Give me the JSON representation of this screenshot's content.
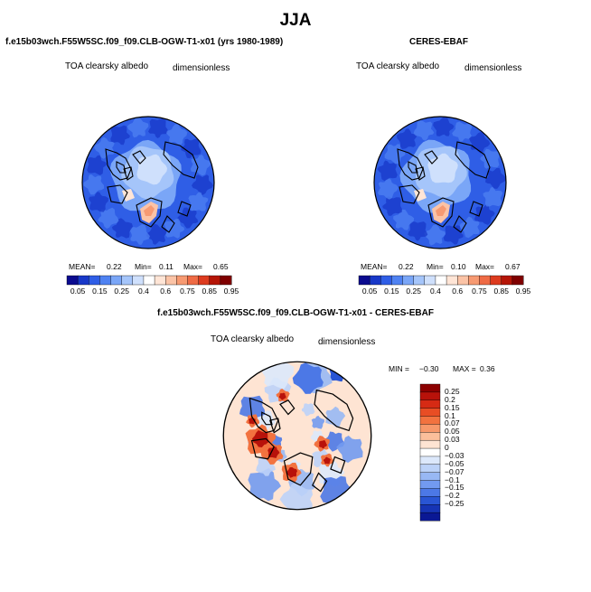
{
  "season": "JJA",
  "panels": [
    {
      "title": "f.e15b03wch.F55W5SC.f09_f09.CLB-OGW-T1-x01 (yrs 1980-1989)",
      "field_label": "TOA clearsky albedo",
      "units_label": "dimensionless",
      "stats": {
        "mean_label": "MEAN=",
        "mean": "0.22",
        "min_label": "Min=",
        "min": "0.11",
        "max_label": "Max=",
        "max": "0.65"
      }
    },
    {
      "title": "CERES-EBAF",
      "field_label": "TOA clearsky albedo",
      "units_label": "dimensionless",
      "stats": {
        "mean_label": "MEAN=",
        "mean": "0.22",
        "min_label": "Min=",
        "min": "0.10",
        "max_label": "Max=",
        "max": "0.67"
      }
    },
    {
      "title": "f.e15b03wch.F55W5SC.f09_f09.CLB-OGW-T1-x01 - CERES-EBAF",
      "field_label": "TOA clearsky albedo",
      "units_label": "dimensionless",
      "stats": {
        "min_label": "MIN =",
        "min": "−0.30",
        "max_label": "MAX =",
        "max": "0.36"
      }
    }
  ],
  "colorbar_abs": {
    "ticks": [
      "0.05",
      "0.15",
      "0.25",
      "0.4",
      "0.6",
      "0.75",
      "0.85",
      "0.95"
    ],
    "colors": [
      "#0b0b8f",
      "#1838c8",
      "#2f5ee6",
      "#4f82f2",
      "#7aa6f7",
      "#a5c5fa",
      "#cfe0fc",
      "#ffffff",
      "#ffe5d6",
      "#fbc3a6",
      "#f79a72",
      "#ef6b45",
      "#dd3b1f",
      "#b51507",
      "#7f0000"
    ]
  },
  "colorbar_diff": {
    "ticks": [
      "0.25",
      "0.2",
      "0.15",
      "0.1",
      "0.07",
      "0.05",
      "0.03",
      "0",
      "−0.03",
      "−0.05",
      "−0.07",
      "−0.1",
      "−0.15",
      "−0.2",
      "−0.25"
    ],
    "colors": [
      "#8c0000",
      "#b8120a",
      "#d62a14",
      "#e84d24",
      "#f2723f",
      "#f7986a",
      "#fbbf9b",
      "#fee4d3",
      "#ffffff",
      "#dce8fb",
      "#bcd2f8",
      "#98b8f4",
      "#729af0",
      "#4c78e6",
      "#2955d4",
      "#1634b5",
      "#0a1894"
    ]
  },
  "chart_data": [
    {
      "type": "heatmap",
      "projection": "north polar stereographic",
      "title": "f.e15b03wch.F55W5SC.f09_f09.CLB-OGW-T1-x01 (yrs 1980-1989)",
      "variable": "TOA clearsky albedo",
      "units": "dimensionless",
      "mean": 0.22,
      "min": 0.11,
      "max": 0.65,
      "contour_levels": [
        0.05,
        0.1,
        0.15,
        0.2,
        0.25,
        0.3,
        0.4,
        0.5,
        0.6,
        0.65,
        0.7,
        0.75,
        0.8,
        0.85,
        0.95
      ]
    },
    {
      "type": "heatmap",
      "projection": "north polar stereographic",
      "title": "CERES-EBAF",
      "variable": "TOA clearsky albedo",
      "units": "dimensionless",
      "mean": 0.22,
      "min": 0.1,
      "max": 0.67,
      "contour_levels": [
        0.05,
        0.1,
        0.15,
        0.2,
        0.25,
        0.3,
        0.4,
        0.5,
        0.6,
        0.65,
        0.7,
        0.75,
        0.8,
        0.85,
        0.95
      ]
    },
    {
      "type": "heatmap",
      "projection": "north polar stereographic",
      "title": "f.e15b03wch.F55W5SC.f09_f09.CLB-OGW-T1-x01 - CERES-EBAF",
      "variable": "TOA clearsky albedo",
      "units": "dimensionless",
      "min": -0.3,
      "max": 0.36,
      "contour_levels": [
        -0.25,
        -0.2,
        -0.15,
        -0.1,
        -0.07,
        -0.05,
        -0.03,
        0,
        0.03,
        0.05,
        0.07,
        0.1,
        0.15,
        0.2,
        0.25
      ]
    }
  ]
}
